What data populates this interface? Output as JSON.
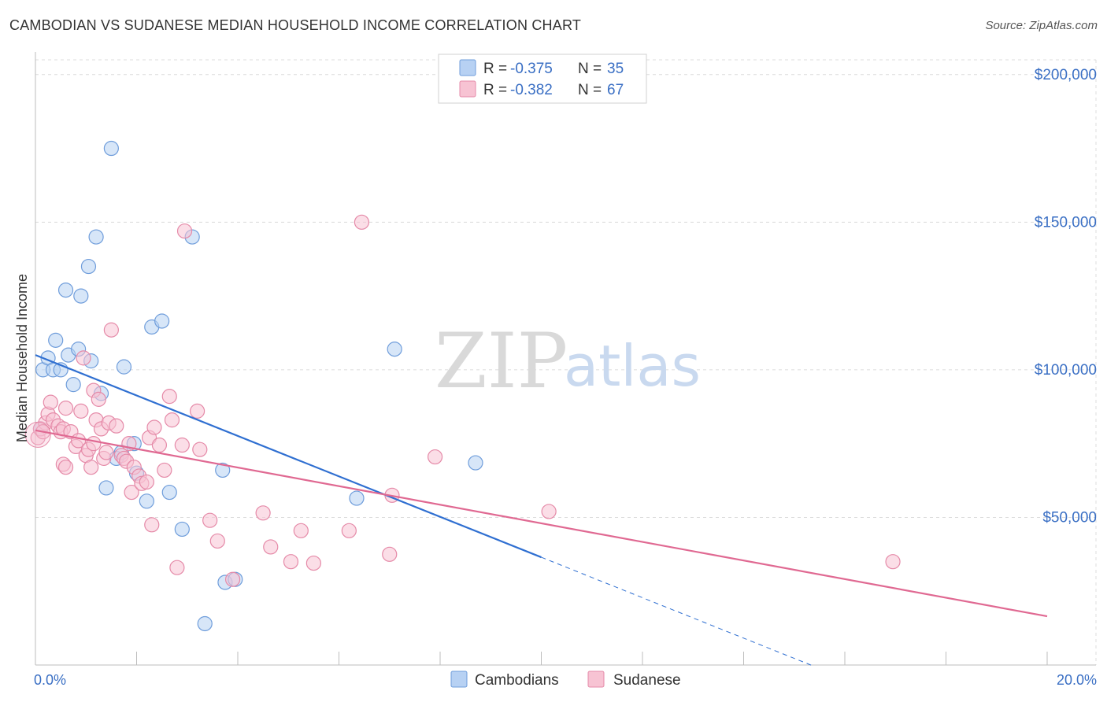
{
  "header": {
    "title": "CAMBODIAN VS SUDANESE MEDIAN HOUSEHOLD INCOME CORRELATION CHART",
    "source": "Source: ZipAtlas.com"
  },
  "watermark": {
    "zip": "ZIP",
    "atlas": "atlas"
  },
  "legend": {
    "rows": [
      {
        "r_label": "R = ",
        "r_value": "-0.375",
        "n_label": "N = ",
        "n_value": "35",
        "color": "#a8c8f0",
        "stroke": "#6f9ddb"
      },
      {
        "r_label": "R = ",
        "r_value": "-0.382",
        "n_label": "N = ",
        "n_value": "67",
        "color": "#f7b8cc",
        "stroke": "#e58aa8"
      }
    ]
  },
  "chart_data": {
    "type": "scatter",
    "title": "CAMBODIAN VS SUDANESE MEDIAN HOUSEHOLD INCOME CORRELATION CHART",
    "xlabel": "",
    "ylabel": "Median Household Income",
    "xlim": [
      0,
      20
    ],
    "ylim": [
      0,
      205000
    ],
    "x_tick_labels": [
      "0.0%",
      "20.0%"
    ],
    "y_ticks": [
      50000,
      100000,
      150000,
      200000
    ],
    "y_tick_labels": [
      "$50,000",
      "$100,000",
      "$150,000",
      "$200,000"
    ],
    "series": [
      {
        "name": "Cambodians",
        "fill": "#b7d1f3",
        "stroke": "#6f9ddb",
        "line_color": "#2f6fd1",
        "trend": {
          "x0": 0.0,
          "y0": 105000,
          "x1": 10.0,
          "y1": 36500,
          "dash_to_x": 15.4
        },
        "points": [
          [
            0.1,
            80000
          ],
          [
            0.15,
            100000
          ],
          [
            0.25,
            104000
          ],
          [
            0.35,
            100000
          ],
          [
            0.4,
            110000
          ],
          [
            0.5,
            100000
          ],
          [
            0.6,
            127000
          ],
          [
            0.65,
            105000
          ],
          [
            0.75,
            95000
          ],
          [
            0.85,
            107000
          ],
          [
            0.9,
            125000
          ],
          [
            1.05,
            135000
          ],
          [
            1.1,
            103000
          ],
          [
            1.2,
            145000
          ],
          [
            1.3,
            92000
          ],
          [
            1.4,
            60000
          ],
          [
            1.5,
            175000
          ],
          [
            1.6,
            70000
          ],
          [
            1.7,
            72000
          ],
          [
            1.75,
            101000
          ],
          [
            1.95,
            75000
          ],
          [
            2.0,
            65000
          ],
          [
            2.2,
            55500
          ],
          [
            2.3,
            114500
          ],
          [
            2.5,
            116500
          ],
          [
            2.65,
            58500
          ],
          [
            2.9,
            46000
          ],
          [
            3.1,
            145000
          ],
          [
            3.35,
            14000
          ],
          [
            3.7,
            66000
          ],
          [
            3.75,
            28000
          ],
          [
            3.95,
            29000
          ],
          [
            6.35,
            56500
          ],
          [
            7.1,
            107000
          ],
          [
            8.7,
            68500
          ]
        ]
      },
      {
        "name": "Sudanese",
        "fill": "#f7c3d3",
        "stroke": "#e58aa8",
        "line_color": "#e06992",
        "trend": {
          "x0": 0.0,
          "y0": 79500,
          "x1": 20.0,
          "y1": 16500
        },
        "points": [
          [
            0.05,
            77000
          ],
          [
            0.1,
            80000
          ],
          [
            0.2,
            82000
          ],
          [
            0.25,
            85000
          ],
          [
            0.3,
            89000
          ],
          [
            0.35,
            83000
          ],
          [
            0.45,
            81000
          ],
          [
            0.5,
            79000
          ],
          [
            0.55,
            80000
          ],
          [
            0.6,
            87000
          ],
          [
            0.55,
            68000
          ],
          [
            0.6,
            67000
          ],
          [
            0.7,
            79000
          ],
          [
            0.8,
            74000
          ],
          [
            0.85,
            76000
          ],
          [
            0.9,
            86000
          ],
          [
            0.95,
            104000
          ],
          [
            1.0,
            71000
          ],
          [
            1.05,
            73000
          ],
          [
            1.1,
            67000
          ],
          [
            1.15,
            93000
          ],
          [
            1.2,
            83000
          ],
          [
            1.25,
            90000
          ],
          [
            1.3,
            80000
          ],
          [
            1.35,
            70000
          ],
          [
            1.4,
            72000
          ],
          [
            1.45,
            82000
          ],
          [
            1.5,
            113500
          ],
          [
            1.6,
            81000
          ],
          [
            1.7,
            71000
          ],
          [
            1.75,
            70000
          ],
          [
            1.8,
            69000
          ],
          [
            1.9,
            58500
          ],
          [
            1.95,
            67000
          ],
          [
            2.05,
            64000
          ],
          [
            2.1,
            61500
          ],
          [
            2.2,
            62000
          ],
          [
            2.25,
            77000
          ],
          [
            2.3,
            47500
          ],
          [
            2.35,
            80500
          ],
          [
            2.45,
            74500
          ],
          [
            2.55,
            66000
          ],
          [
            2.65,
            91000
          ],
          [
            2.7,
            83000
          ],
          [
            2.8,
            33000
          ],
          [
            2.9,
            74500
          ],
          [
            2.95,
            147000
          ],
          [
            3.2,
            86000
          ],
          [
            3.25,
            73000
          ],
          [
            3.45,
            49000
          ],
          [
            3.6,
            42000
          ],
          [
            3.9,
            29000
          ],
          [
            4.5,
            51500
          ],
          [
            4.65,
            40000
          ],
          [
            5.05,
            35000
          ],
          [
            5.25,
            45500
          ],
          [
            5.5,
            34500
          ],
          [
            6.2,
            45500
          ],
          [
            6.45,
            150000
          ],
          [
            7.0,
            37500
          ],
          [
            7.05,
            57500
          ],
          [
            7.9,
            70500
          ],
          [
            10.15,
            52000
          ],
          [
            16.95,
            35000
          ],
          [
            1.15,
            75000
          ],
          [
            1.85,
            75000
          ],
          [
            0.15,
            79000
          ]
        ]
      }
    ]
  },
  "bottom_legend": [
    {
      "label": "Cambodians",
      "color": "#b7d1f3",
      "stroke": "#6f9ddb"
    },
    {
      "label": "Sudanese",
      "color": "#f7c3d3",
      "stroke": "#e58aa8"
    }
  ]
}
